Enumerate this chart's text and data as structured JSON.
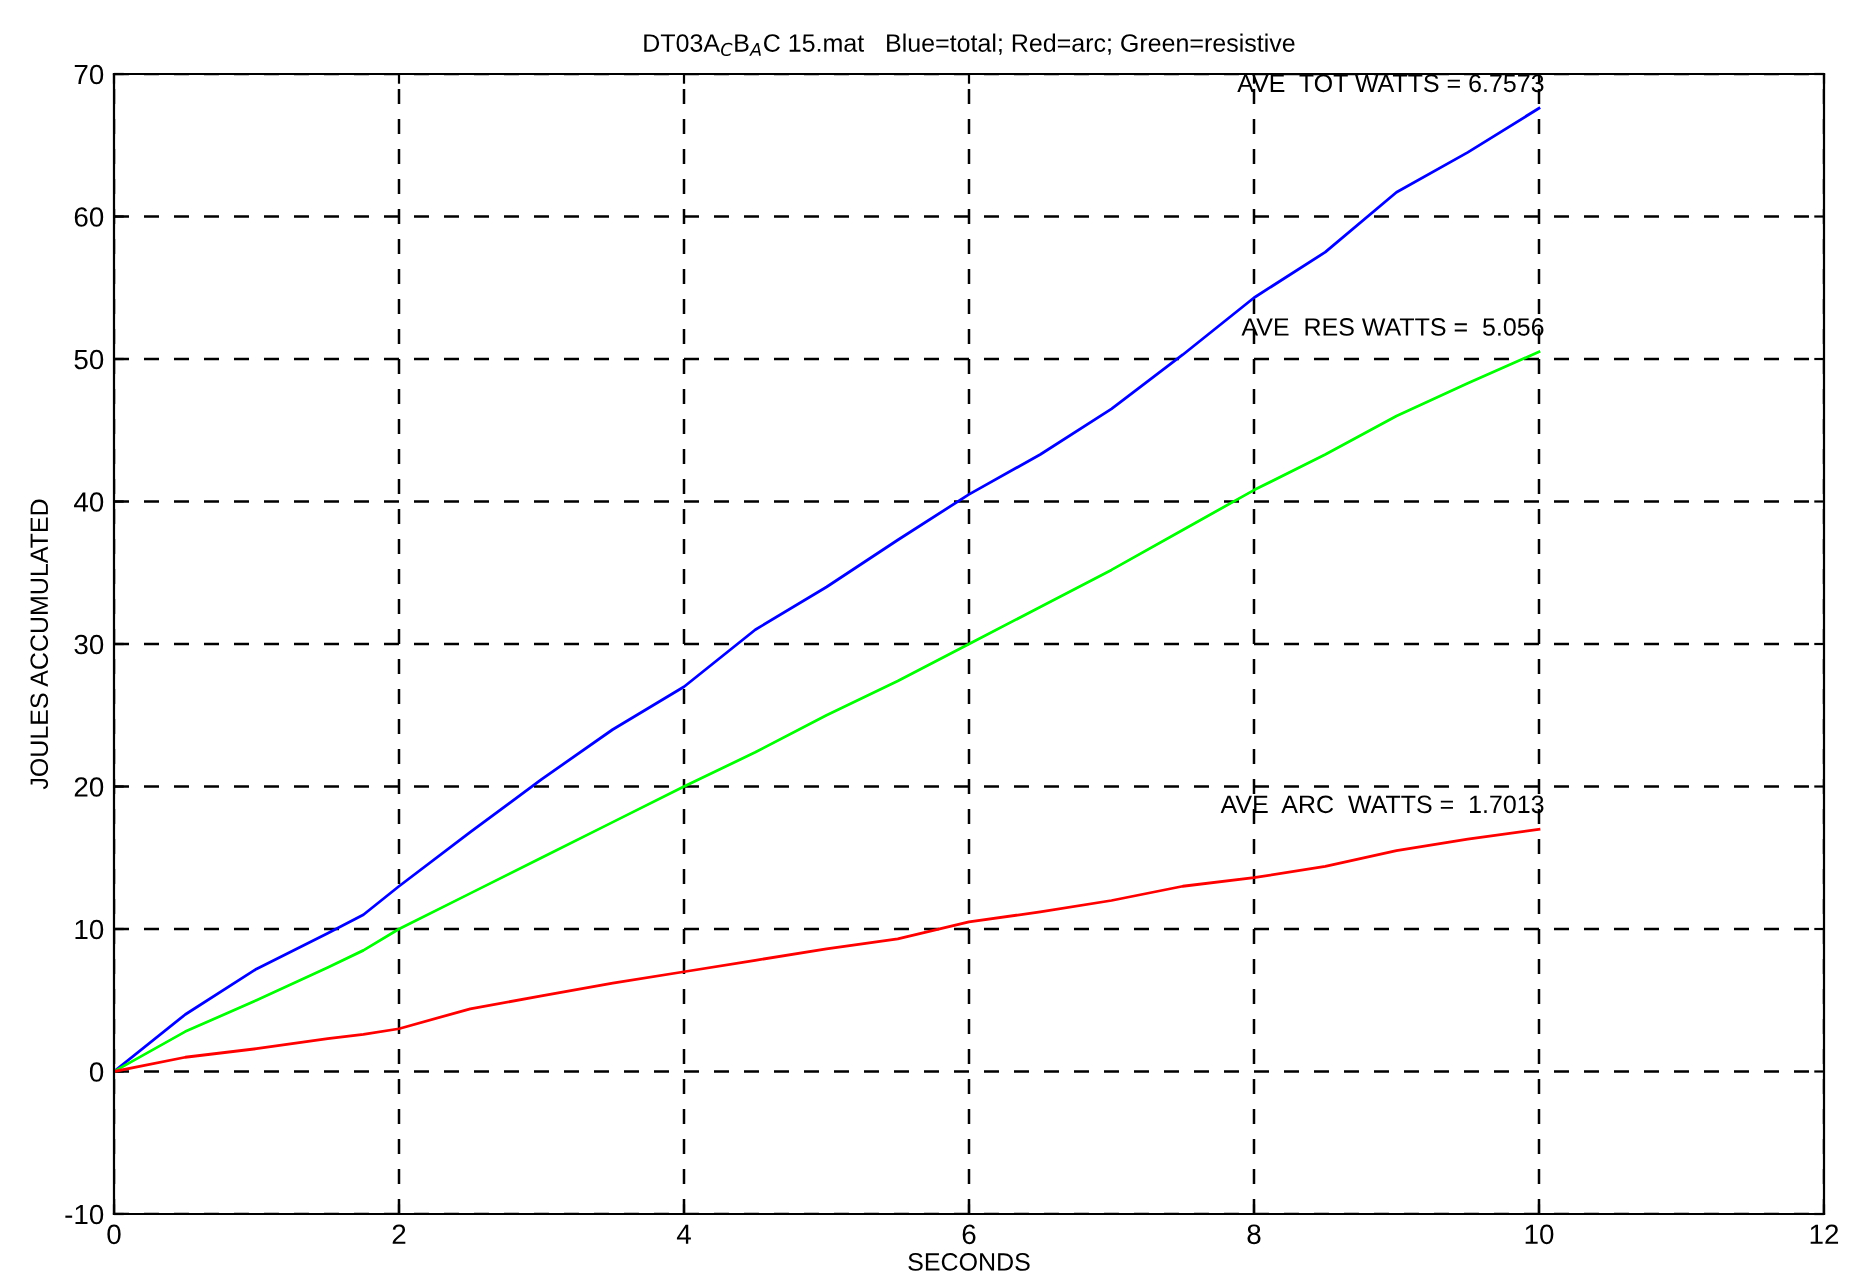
{
  "chart_data": {
    "type": "line",
    "title": "DT03A$_{C}$B$_{A}$C 15.mat   Blue=total; Red=arc; Green=resistive",
    "xlabel": "SECONDS",
    "ylabel": "JOULES ACCUMULATED",
    "x": [
      0,
      0.5,
      1,
      1.5,
      1.75,
      2,
      2.5,
      3,
      3.5,
      4,
      4.5,
      5,
      5.5,
      6,
      6.5,
      7,
      7.5,
      8,
      8.5,
      9,
      9.5,
      10
    ],
    "series": [
      {
        "color": "#0000ff",
        "values": [
          0,
          4,
          7.2,
          9.7,
          11,
          13,
          16.8,
          20.5,
          24,
          27,
          31,
          34,
          37.3,
          40.5,
          43.3,
          46.5,
          50.3,
          54.3,
          57.5,
          61.7,
          64.5,
          67.6
        ]
      },
      {
        "color": "#00ff00",
        "values": [
          0,
          2.8,
          5,
          7.3,
          8.5,
          10,
          12.5,
          15,
          17.5,
          20,
          22.4,
          25,
          27.4,
          30,
          32.6,
          35.2,
          38,
          40.8,
          43.3,
          46,
          48.3,
          50.5
        ]
      },
      {
        "color": "#ff0000",
        "values": [
          0,
          1,
          1.6,
          2.3,
          2.6,
          3,
          4.4,
          5.3,
          6.2,
          7,
          7.8,
          8.6,
          9.3,
          10.5,
          11.2,
          12,
          13,
          13.6,
          14.4,
          15.5,
          16.3,
          17
        ]
      }
    ],
    "annotations": [
      "AVE  TOT WATTS = 6.7573",
      "AVE  RES WATTS =  5.056",
      "AVE  ARC  WATTS =  1.7013"
    ],
    "xlim": [
      0,
      12
    ],
    "xticks": [
      0,
      2,
      4,
      6,
      8,
      10,
      12
    ],
    "ylim": [
      -10,
      70
    ],
    "yticks": [
      -10,
      0,
      10,
      20,
      30,
      40,
      50,
      60,
      70
    ],
    "grid": true,
    "marker": "none",
    "line_style": "solid"
  }
}
